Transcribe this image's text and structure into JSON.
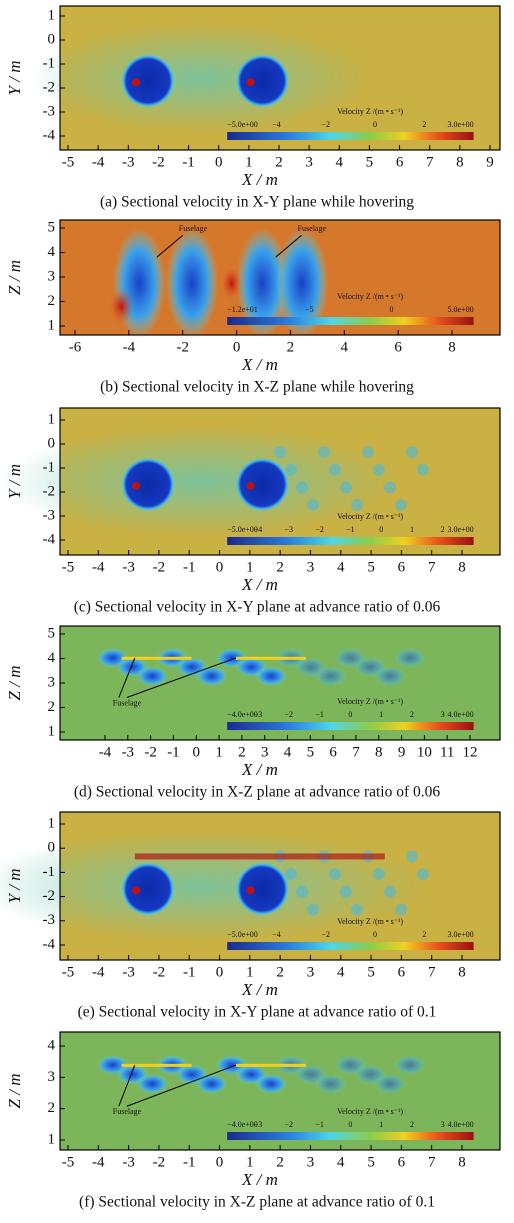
{
  "panels": [
    {
      "caption": "(a) Sectional velocity in X-Y plane while hovering",
      "x_label": "X / m",
      "y_label": "Y / m",
      "xticks": [
        -5,
        -4,
        -3,
        -2,
        -1,
        0,
        1,
        2,
        3,
        4,
        5,
        6,
        7,
        8,
        9
      ],
      "yticks": [
        1,
        0,
        -1,
        -2,
        -3,
        -4
      ],
      "colorbar": {
        "title": "Velocity Z /(m • s⁻¹)",
        "labels": [
          "−5.0e+00",
          "−4",
          "−2",
          "0",
          "2",
          "3.0e+00"
        ]
      }
    },
    {
      "caption": "(b) Sectional velocity in X-Z plane while hovering",
      "x_label": "X / m",
      "y_label": "Z / m",
      "xticks": [
        -6,
        -4,
        -2,
        0,
        2,
        4,
        6,
        8
      ],
      "yticks": [
        5,
        4,
        3,
        2,
        1
      ],
      "colorbar": {
        "title": "Velocity Z /(m • s⁻¹)",
        "labels": [
          "−1.2e+01",
          "−5",
          "0",
          "5.0e+00"
        ]
      },
      "annotations": [
        "Fuselage",
        "Fuselage"
      ]
    },
    {
      "caption": "(c) Sectional velocity in X-Y plane at advance ratio of 0.06",
      "x_label": "X / m",
      "y_label": "Y / m",
      "xticks": [
        -5,
        -4,
        -3,
        -2,
        -1,
        0,
        1,
        2,
        3,
        4,
        5,
        6,
        7,
        8
      ],
      "yticks": [
        1,
        0,
        -1,
        -2,
        -3,
        -4
      ],
      "colorbar": {
        "title": "Velocity Z /(m • s⁻¹)",
        "labels": [
          "−5.0e+00",
          "−4",
          "−3",
          "−2",
          "−1",
          "0",
          "1",
          "2",
          "3.0e+00"
        ]
      }
    },
    {
      "caption": "(d) Sectional velocity in X-Z plane at advance ratio of 0.06",
      "x_label": "X / m",
      "y_label": "Z / m",
      "xticks": [
        -4,
        -3,
        -2,
        -1,
        0,
        1,
        2,
        3,
        4,
        5,
        6,
        7,
        8,
        9,
        10,
        11,
        12
      ],
      "yticks": [
        5,
        4,
        3,
        2,
        1
      ],
      "colorbar": {
        "title": "Velocity Z /(m • s⁻¹)",
        "labels": [
          "−4.0e+00",
          "−3",
          "−2",
          "−1",
          "0",
          "1",
          "2",
          "3",
          "4.0e+00"
        ]
      },
      "annotations": [
        "Fuselage"
      ]
    },
    {
      "caption": "(e) Sectional velocity in X-Y plane at advance ratio of 0.1",
      "x_label": "X / m",
      "y_label": "Y / m",
      "xticks": [
        -5,
        -4,
        -3,
        -2,
        -1,
        0,
        1,
        2,
        3,
        4,
        5,
        6,
        7,
        8
      ],
      "yticks": [
        1,
        0,
        -1,
        -2,
        -3,
        -4
      ],
      "colorbar": {
        "title": "Velocity Z /(m • s⁻¹)",
        "labels": [
          "−5.0e+00",
          "−4",
          "−2",
          "0",
          "2",
          "3.0e+00"
        ]
      }
    },
    {
      "caption": "(f) Sectional velocity in X-Z plane at advance ratio of 0.1",
      "x_label": "X / m",
      "y_label": "Z / m",
      "xticks": [
        -5,
        -4,
        -3,
        -2,
        -1,
        0,
        1,
        2,
        3,
        4,
        5,
        6,
        7,
        8
      ],
      "yticks": [
        4,
        3,
        2,
        1
      ],
      "colorbar": {
        "title": "Velocity Z /(m • s⁻¹)",
        "labels": [
          "−4.0e+00",
          "−3",
          "−2",
          "−1",
          "0",
          "1",
          "2",
          "3",
          "4.0e+00"
        ]
      },
      "annotations": [
        "Fuselage"
      ]
    }
  ]
}
